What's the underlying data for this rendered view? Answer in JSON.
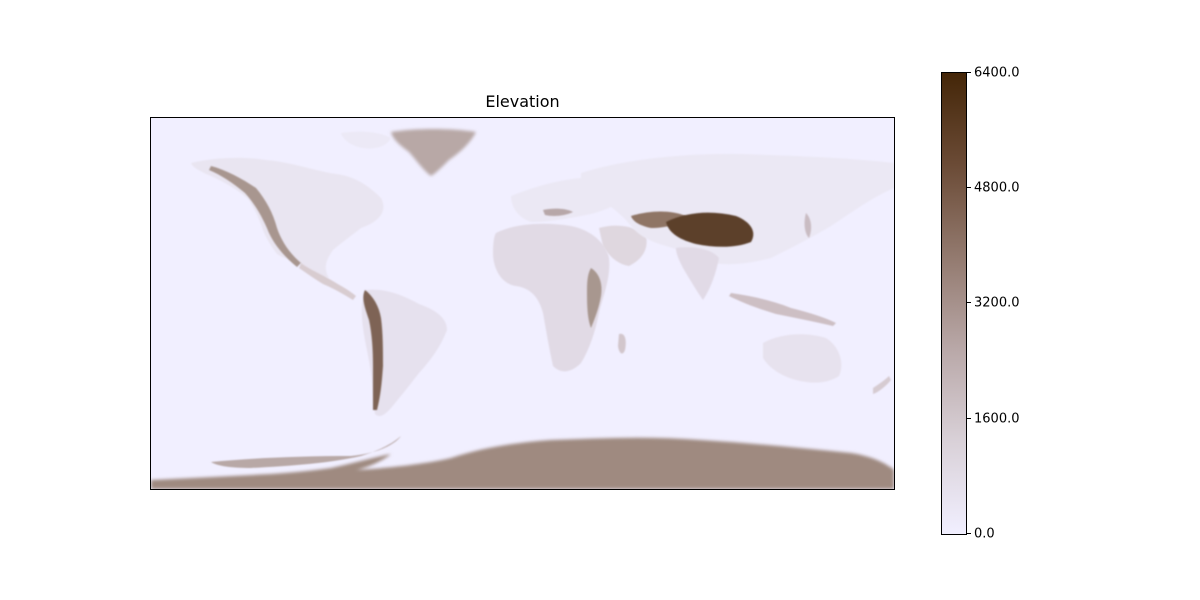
{
  "map": {
    "title": "Elevation",
    "projection": "plate-carree",
    "ocean_color": "#f1efff"
  },
  "colorbar": {
    "min": 0.0,
    "max": 6400.0,
    "ticks": [
      {
        "value": 0.0,
        "label": "0.0"
      },
      {
        "value": 1600.0,
        "label": "1600.0"
      },
      {
        "value": 3200.0,
        "label": "3200.0"
      },
      {
        "value": 4800.0,
        "label": "4800.0"
      },
      {
        "value": 6400.0,
        "label": "6400.0"
      }
    ],
    "colors": [
      "#f1efff",
      "#d9d1d8",
      "#b9a8a8",
      "#937a6f",
      "#6b4b36",
      "#442608"
    ]
  }
}
